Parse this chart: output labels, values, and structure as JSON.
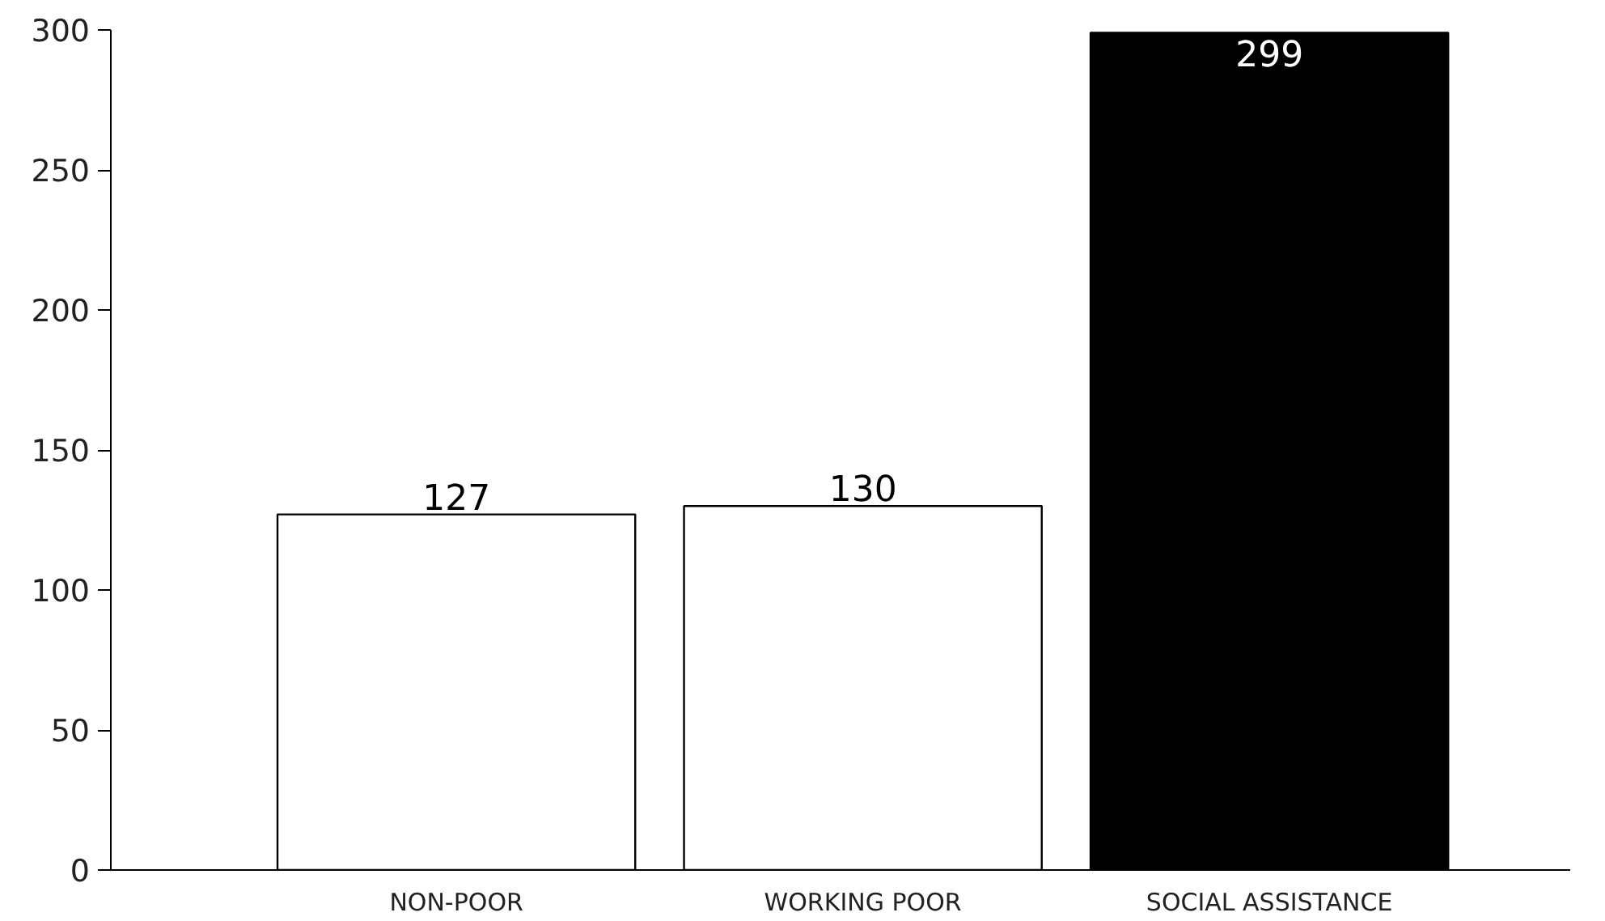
{
  "chart_data": {
    "type": "bar",
    "categories": [
      "NON-POOR",
      "WORKING POOR",
      "SOCIAL ASSISTANCE"
    ],
    "values": [
      127,
      130,
      299
    ],
    "colors": [
      "#ffffff",
      "#ffffff",
      "#000000"
    ],
    "ylim": [
      0,
      300
    ],
    "yticks": [
      0,
      50,
      100,
      150,
      200,
      250,
      300
    ],
    "grid": false,
    "data_labels": true
  }
}
